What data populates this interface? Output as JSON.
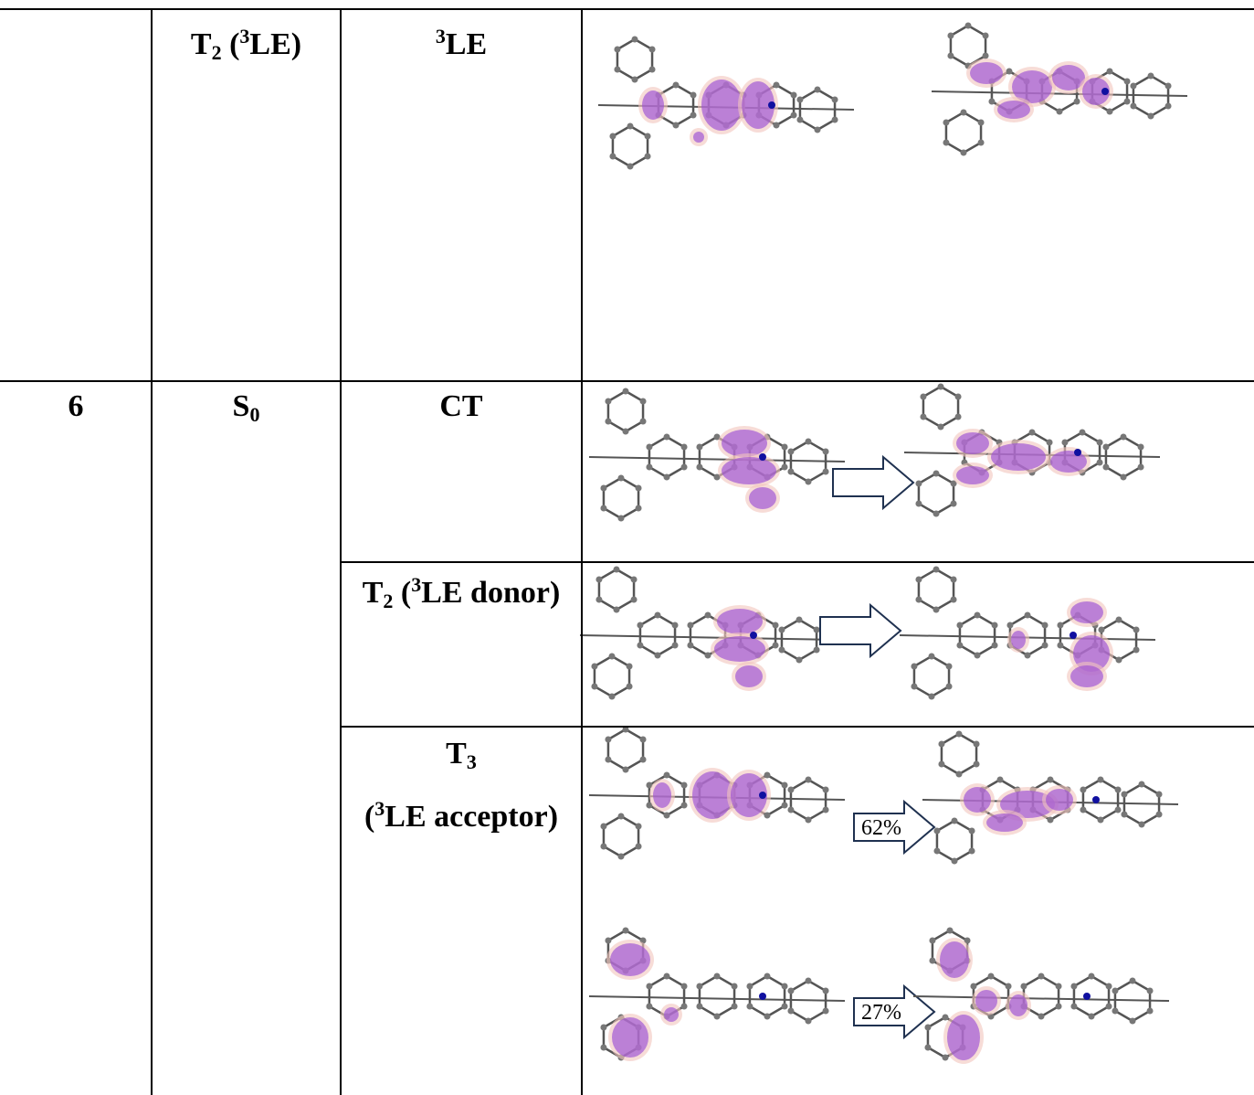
{
  "table": {
    "rows": [
      {
        "state": [
          "T",
          "2",
          " (",
          "3",
          "LE)"
        ],
        "transition": [
          "3",
          "LE"
        ]
      },
      {
        "entry": "6",
        "state": [
          "S",
          "0"
        ],
        "transition": [
          "CT"
        ]
      },
      {
        "transition": [
          "T",
          "2",
          " (",
          "3",
          "LE donor)"
        ]
      },
      {
        "transition": [
          "T",
          "3",
          "(",
          "3",
          "LE acceptor)"
        ],
        "contributions": [
          "62%",
          "27%"
        ]
      }
    ]
  }
}
